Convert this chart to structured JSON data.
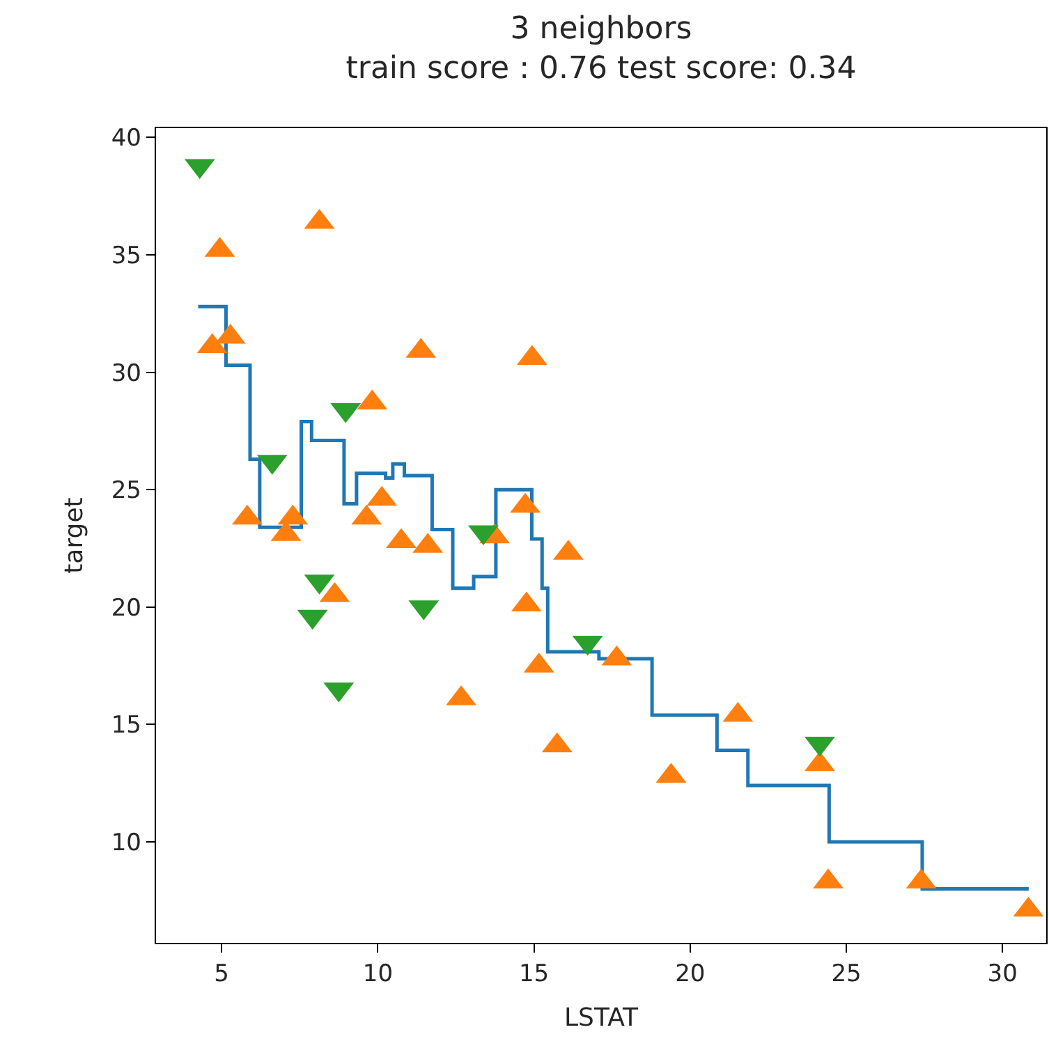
{
  "chart_data": {
    "type": "scatter",
    "title": "3 neighbors",
    "subtitle": "train score : 0.76 test score: 0.34",
    "xlabel": "LSTAT",
    "ylabel": "target",
    "series": [
      {
        "type": "step",
        "color": "#1f77b4",
        "marker": "none",
        "x": [
          4.25,
          5.14,
          5.91,
          6.22,
          7.55,
          7.88,
          8.92,
          9.32,
          10.25,
          10.48,
          10.85,
          11.74,
          12.4,
          13.07,
          13.78,
          14.93,
          15.26,
          15.44,
          17.08,
          18.78,
          20.86,
          21.85,
          24.45,
          27.43,
          30.84
        ],
        "values": [
          32.8,
          30.3,
          26.3,
          23.4,
          27.9,
          27.1,
          24.4,
          25.7,
          25.5,
          26.1,
          25.6,
          23.3,
          20.8,
          21.3,
          25.0,
          22.9,
          20.8,
          18.1,
          17.8,
          15.4,
          13.9,
          12.4,
          10.0,
          8.0,
          8.0
        ]
      },
      {
        "type": "scatter",
        "color": "#ff7f0e",
        "marker": "triangle",
        "x": [
          4.94,
          8.13,
          4.7,
          5.28,
          11.38,
          14.94,
          9.82,
          5.82,
          7.06,
          7.28,
          8.62,
          9.64,
          10.13,
          10.75,
          11.6,
          13.74,
          14.72,
          16.1,
          14.76,
          15.16,
          12.67,
          15.74,
          17.65,
          21.53,
          19.39,
          24.15,
          24.42,
          27.4,
          30.83
        ],
        "values": [
          35.2,
          36.4,
          31.1,
          31.5,
          30.9,
          30.6,
          28.7,
          23.8,
          23.1,
          23.8,
          20.5,
          23.8,
          24.6,
          22.8,
          22.6,
          23.0,
          24.3,
          22.3,
          20.1,
          17.5,
          16.1,
          14.1,
          17.8,
          15.4,
          12.8,
          13.3,
          8.3,
          8.3,
          7.1
        ]
      },
      {
        "type": "scatter",
        "color": "#2ca02c",
        "marker": "triangle-down",
        "x": [
          4.3,
          8.97,
          6.62,
          8.13,
          7.91,
          8.75,
          11.47,
          13.38,
          16.72,
          24.15
        ],
        "values": [
          38.8,
          28.4,
          26.2,
          21.1,
          19.6,
          16.5,
          20.0,
          23.2,
          18.5,
          14.2
        ]
      }
    ],
    "xlim": [
      2.9,
      31.4
    ],
    "xticks": [
      5,
      10,
      15,
      20,
      25,
      30
    ],
    "ylim": [
      5.7,
      40.4
    ],
    "yticks": [
      10,
      15,
      20,
      25,
      30,
      35,
      40
    ]
  }
}
